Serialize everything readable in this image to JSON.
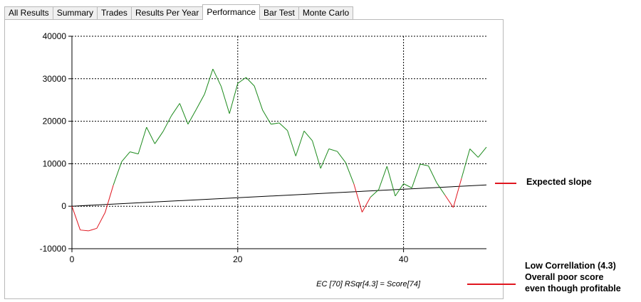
{
  "tabs": [
    {
      "label": "All Results",
      "active": false
    },
    {
      "label": "Summary",
      "active": false
    },
    {
      "label": "Trades",
      "active": false
    },
    {
      "label": "Results Per Year",
      "active": false
    },
    {
      "label": "Performance",
      "active": true
    },
    {
      "label": "Bar Test",
      "active": false
    },
    {
      "label": "Monte Carlo",
      "active": false
    }
  ],
  "chart_data": {
    "type": "line",
    "xlim": [
      0,
      50
    ],
    "ylim": [
      -10000,
      40000
    ],
    "x_ticks": [
      0,
      20,
      40
    ],
    "y_ticks": [
      -10000,
      0,
      10000,
      20000,
      30000,
      40000
    ],
    "grid": true,
    "colors": {
      "above_zero": "#1c8a1c",
      "below_zero": "#e0161f",
      "trend": "#000000"
    },
    "series": [
      {
        "x": [
          0,
          1,
          2,
          3,
          4,
          5,
          6,
          7,
          8,
          9,
          10,
          11,
          12,
          13,
          14,
          15,
          16,
          17,
          18,
          19,
          20,
          21,
          22,
          23,
          24,
          25,
          26,
          27,
          28,
          29,
          30,
          31,
          32,
          33,
          34,
          35,
          36,
          37,
          38,
          39,
          40,
          41,
          42,
          43,
          44,
          45,
          46,
          47,
          48,
          49,
          50
        ],
        "y": [
          0,
          -5600,
          -5800,
          -5200,
          -1500,
          5000,
          10500,
          12800,
          12300,
          18600,
          14700,
          17600,
          21300,
          24200,
          19300,
          22800,
          26400,
          32300,
          28200,
          21800,
          28900,
          30300,
          28300,
          22600,
          19300,
          19600,
          17800,
          11800,
          17700,
          15400,
          8900,
          13500,
          12900,
          10300,
          5300,
          -1400,
          2100,
          3900,
          9400,
          2400,
          5300,
          4300,
          9900,
          9500,
          5500,
          2600,
          -300,
          6600,
          13500,
          11500,
          13900
        ]
      },
      {
        "x": [
          0,
          50
        ],
        "y": [
          0,
          5000
        ]
      }
    ],
    "footer_text": "EC [70]  RSqr[4.3] = Score[74]"
  },
  "annotations": {
    "expected_slope": "Expected slope",
    "correlation_lines": [
      "Low Correllation (4.3)",
      "Overall poor score",
      "even though profitable"
    ]
  }
}
